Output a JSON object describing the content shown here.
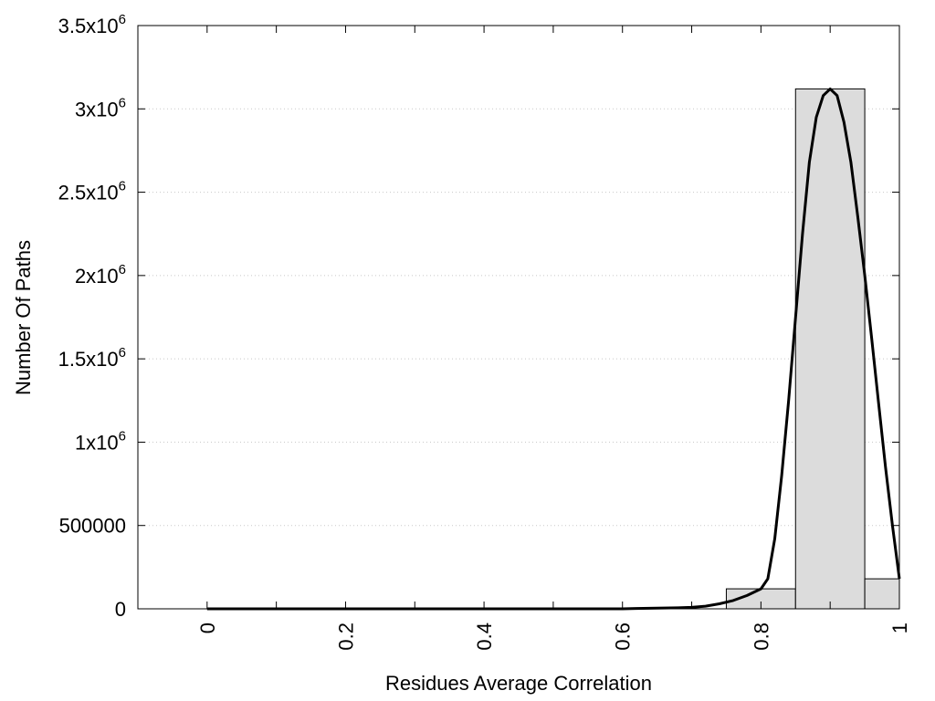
{
  "chart_data": {
    "type": "bar",
    "xlabel": "Residues Average Correlation",
    "ylabel": "Number Of Paths",
    "xlim": [
      -0.1,
      1.0
    ],
    "ylim": [
      0,
      3500000
    ],
    "grid": true,
    "x_ticks": [
      {
        "value": 0,
        "label": "0"
      },
      {
        "value": 0.2,
        "label": "0.2"
      },
      {
        "value": 0.4,
        "label": "0.4"
      },
      {
        "value": 0.6,
        "label": "0.6"
      },
      {
        "value": 0.8,
        "label": "0.8"
      },
      {
        "value": 1.0,
        "label": "1"
      }
    ],
    "y_ticks": [
      {
        "value": 0,
        "label": "0",
        "exp": ""
      },
      {
        "value": 500000,
        "label": "500000",
        "exp": ""
      },
      {
        "value": 1000000,
        "label": "1x10",
        "exp": "6"
      },
      {
        "value": 1500000,
        "label": "1.5x10",
        "exp": "6"
      },
      {
        "value": 2000000,
        "label": "2x10",
        "exp": "6"
      },
      {
        "value": 2500000,
        "label": "2.5x10",
        "exp": "6"
      },
      {
        "value": 3000000,
        "label": "3x10",
        "exp": "6"
      },
      {
        "value": 3500000,
        "label": "3.5x10",
        "exp": "6"
      }
    ],
    "bars": [
      {
        "x_start": 0.75,
        "x_end": 0.85,
        "value": 120000
      },
      {
        "x_start": 0.85,
        "x_end": 0.95,
        "value": 3120000
      },
      {
        "x_start": 0.95,
        "x_end": 1.0,
        "value": 180000
      }
    ],
    "fit_curve": {
      "x": [
        0,
        0.1,
        0.2,
        0.3,
        0.4,
        0.5,
        0.6,
        0.62,
        0.65,
        0.68,
        0.7,
        0.72,
        0.74,
        0.76,
        0.78,
        0.8,
        0.81,
        0.82,
        0.83,
        0.84,
        0.85,
        0.86,
        0.87,
        0.88,
        0.89,
        0.9,
        0.91,
        0.92,
        0.93,
        0.94,
        0.95,
        0.96,
        0.97,
        0.98,
        0.99,
        1.0
      ],
      "y": [
        0,
        0,
        0,
        0,
        0,
        0,
        0,
        2000,
        4000,
        6000,
        9000,
        16000,
        30000,
        50000,
        80000,
        120000,
        180000,
        420000,
        800000,
        1250000,
        1750000,
        2250000,
        2680000,
        2950000,
        3080000,
        3120000,
        3080000,
        2920000,
        2680000,
        2350000,
        2000000,
        1620000,
        1230000,
        850000,
        500000,
        180000
      ]
    },
    "colors": {
      "bar_fill": "#dcdcdc",
      "bar_stroke": "#000000",
      "curve": "#000000",
      "grid": "#c8c8c8"
    }
  }
}
